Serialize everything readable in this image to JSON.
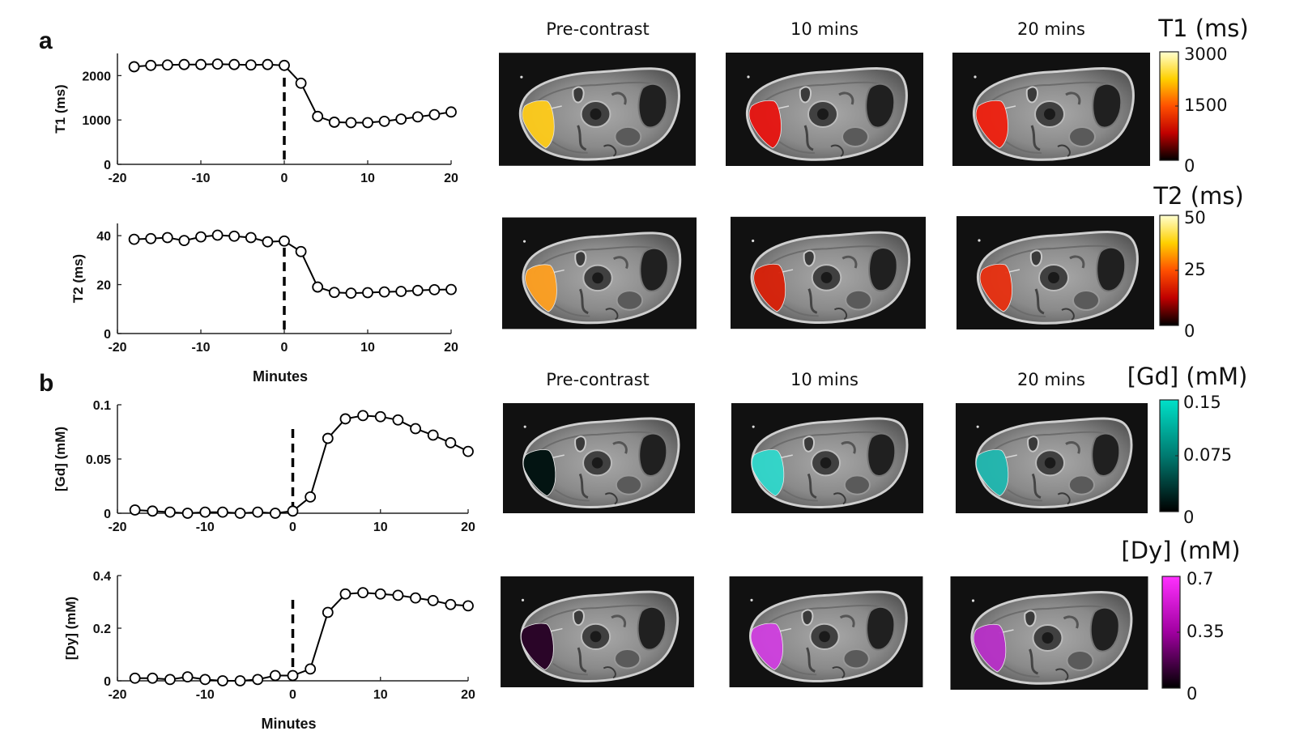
{
  "panels": {
    "a": "a",
    "b": "b"
  },
  "column_headers_a": [
    "Pre-contrast",
    "10 mins",
    "20 mins"
  ],
  "column_headers_b": [
    "Pre-contrast",
    "10 mins",
    "20 mins"
  ],
  "chart_data": [
    {
      "type": "line",
      "panel": "a",
      "ylabel": "T1 (ms)",
      "xlabel": "",
      "xlim": [
        -20,
        20
      ],
      "ylim": [
        0,
        2500
      ],
      "xticks": [
        -20,
        -10,
        0,
        10,
        20
      ],
      "yticks": [
        0,
        1000,
        2000
      ],
      "injection_line_x": 0,
      "x": [
        -18,
        -16,
        -14,
        -12,
        -10,
        -8,
        -6,
        -4,
        -2,
        0,
        2,
        4,
        6,
        8,
        10,
        12,
        14,
        16,
        18,
        20
      ],
      "values": [
        2200,
        2230,
        2240,
        2250,
        2250,
        2260,
        2250,
        2240,
        2250,
        2230,
        1830,
        1080,
        950,
        940,
        940,
        970,
        1020,
        1070,
        1120,
        1180
      ]
    },
    {
      "type": "line",
      "panel": "a",
      "ylabel": "T2 (ms)",
      "xlabel": "Minutes",
      "xlim": [
        -20,
        20
      ],
      "ylim": [
        0,
        45
      ],
      "xticks": [
        -20,
        -10,
        0,
        10,
        20
      ],
      "yticks": [
        0,
        20,
        40
      ],
      "injection_line_x": 0,
      "x": [
        -18,
        -16,
        -14,
        -12,
        -10,
        -8,
        -6,
        -4,
        -2,
        0,
        2,
        4,
        6,
        8,
        10,
        12,
        14,
        16,
        18,
        20
      ],
      "values": [
        38.5,
        38.8,
        39.2,
        38,
        39.5,
        40.2,
        39.8,
        39.2,
        37.5,
        37.8,
        33.5,
        19,
        16.8,
        16.5,
        16.7,
        17,
        17.2,
        17.6,
        17.9,
        18
      ]
    },
    {
      "type": "line",
      "panel": "b",
      "ylabel": "[Gd] (mM)",
      "xlabel": "",
      "xlim": [
        -20,
        20
      ],
      "ylim": [
        0,
        0.1
      ],
      "xticks": [
        -20,
        -10,
        0,
        10,
        20
      ],
      "yticks": [
        0,
        0.05,
        0.1
      ],
      "ytick_labels": [
        "0",
        "0.05",
        "0.1"
      ],
      "injection_line_x": 0,
      "x": [
        -18,
        -16,
        -14,
        -12,
        -10,
        -8,
        -6,
        -4,
        -2,
        0,
        2,
        4,
        6,
        8,
        10,
        12,
        14,
        16,
        18,
        20
      ],
      "values": [
        0.003,
        0.002,
        0.001,
        0,
        0.001,
        0.001,
        0,
        0.001,
        0,
        0.002,
        0.015,
        0.069,
        0.087,
        0.09,
        0.089,
        0.086,
        0.078,
        0.072,
        0.065,
        0.057
      ]
    },
    {
      "type": "line",
      "panel": "b",
      "ylabel": "[Dy] (mM)",
      "xlabel": "Minutes",
      "xlim": [
        -20,
        20
      ],
      "ylim": [
        0,
        0.4
      ],
      "xticks": [
        -20,
        -10,
        0,
        10,
        20
      ],
      "yticks": [
        0,
        0.2,
        0.4
      ],
      "injection_line_x": 0,
      "x": [
        -18,
        -16,
        -14,
        -12,
        -10,
        -8,
        -6,
        -4,
        -2,
        0,
        2,
        4,
        6,
        8,
        10,
        12,
        14,
        16,
        18,
        20
      ],
      "values": [
        0.01,
        0.01,
        0.005,
        0.015,
        0.005,
        0,
        0,
        0.005,
        0.02,
        0.02,
        0.045,
        0.26,
        0.33,
        0.335,
        0.33,
        0.325,
        0.315,
        0.305,
        0.29,
        0.285
      ]
    }
  ],
  "colorbars": [
    {
      "title": "T1 (ms)",
      "ticks": [
        "3000",
        "1500",
        "0"
      ],
      "colors": [
        "#ffffd0",
        "#ffd000",
        "#ff5000",
        "#c00000",
        "#000000"
      ]
    },
    {
      "title": "T2 (ms)",
      "ticks": [
        "50",
        "25",
        "0"
      ],
      "colors": [
        "#ffffd0",
        "#ffd000",
        "#ff5000",
        "#c00000",
        "#000000"
      ]
    },
    {
      "title": "[Gd] (mM)",
      "ticks": [
        "0.15",
        "0.075",
        "0"
      ],
      "colors": [
        "#00e0c8",
        "#007a70",
        "#000000"
      ]
    },
    {
      "title": "[Dy] (mM)",
      "ticks": [
        "0.7",
        "0.35",
        "0"
      ],
      "colors": [
        "#ff30ff",
        "#a000a0",
        "#000000"
      ]
    }
  ],
  "mri_rows": [
    {
      "cells": [
        {
          "roi_color": "#ffcc1a",
          "roi_opacity": 0.95
        },
        {
          "roi_color": "#e81410",
          "roi_opacity": 0.95
        },
        {
          "roi_color": "#f0200f",
          "roi_opacity": 0.95
        }
      ]
    },
    {
      "cells": [
        {
          "roi_color": "#ffa020",
          "roi_opacity": 0.95
        },
        {
          "roi_color": "#d82008",
          "roi_opacity": 0.95
        },
        {
          "roi_color": "#e83010",
          "roi_opacity": 0.95
        }
      ]
    },
    {
      "cells": [
        {
          "roi_color": "#031412",
          "roi_opacity": 1
        },
        {
          "roi_color": "#30d8cc",
          "roi_opacity": 0.95
        },
        {
          "roi_color": "#20b8b0",
          "roi_opacity": 0.95
        }
      ]
    },
    {
      "cells": [
        {
          "roi_color": "#2a0528",
          "roi_opacity": 1
        },
        {
          "roi_color": "#d040e0",
          "roi_opacity": 0.95
        },
        {
          "roi_color": "#b830c8",
          "roi_opacity": 0.95
        }
      ]
    }
  ]
}
